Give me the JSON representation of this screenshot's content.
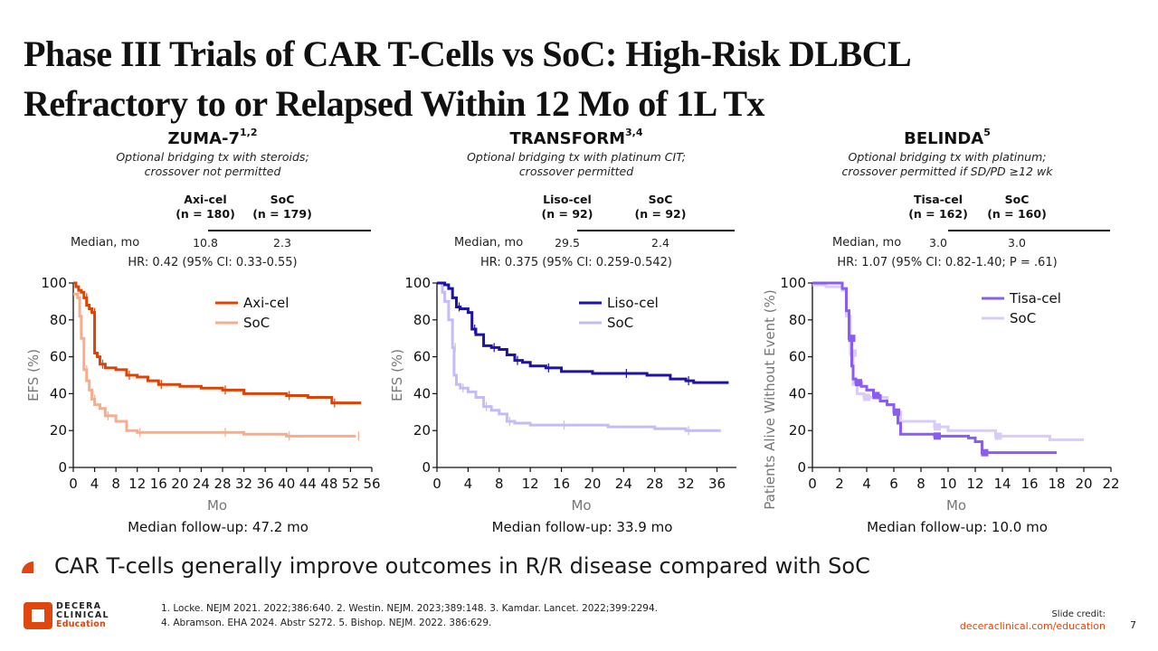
{
  "slide": {
    "title_line1": "Phase III Trials of CAR T-Cells vs SoC: High-Risk DLBCL",
    "title_line2": "Refractory to or Relapsed Within 12 Mo of 1L Tx",
    "bullet": "CAR T-cells generally improve outcomes in R/R disease compared with SoC",
    "references_line1": "1. Locke. NEJM 2021. 2022;386:640. 2. Westin. NEJM. 2023;389:148. 3. Kamdar. Lancet. 2022;399:2294.",
    "references_line2": "4. Abramson. EHA 2024. Abstr S272. 5. Bishop. NEJM. 2022. 386:629.",
    "credit_label": "Slide credit:",
    "credit_link": "deceraclinical.com/education",
    "page_number": "7",
    "logo": {
      "line1": "DECERA",
      "line2": "CLINICAL",
      "line3": "Education",
      "icon": "decera-logo-icon"
    },
    "brand_color": "#e0470f"
  },
  "panels": [
    {
      "trial": "ZUMA-7",
      "refs": "1,2",
      "desc_line1": "Optional bridging tx with steroids;",
      "desc_line2": "crossover not permitted",
      "arm1_name": "Axi-cel",
      "arm1_n": "(n = 180)",
      "arm2_name": "SoC",
      "arm2_n": "(n = 179)",
      "median_label": "Median, mo",
      "arm1_median": "10.8",
      "arm2_median": "2.3",
      "hr_text": "HR: 0.42 (95% CI: 0.33-0.55)",
      "followup": "Median follow-up: 47.2 mo"
    },
    {
      "trial": "TRANSFORM",
      "refs": "3,4",
      "desc_line1": "Optional bridging tx with platinum CIT;",
      "desc_line2": "crossover permitted",
      "arm1_name": "Liso-cel",
      "arm1_n": "(n = 92)",
      "arm2_name": "SoC",
      "arm2_n": "(n = 92)",
      "median_label": "Median, mo",
      "arm1_median": "29.5",
      "arm2_median": "2.4",
      "hr_text": "HR: 0.375 (95% CI: 0.259-0.542)",
      "followup": "Median follow-up: 33.9 mo"
    },
    {
      "trial": "BELINDA",
      "refs": "5",
      "desc_line1": "Optional bridging tx with platinum;",
      "desc_line2": "crossover permitted if SD/PD ≥12 wk",
      "arm1_name": "Tisa-cel",
      "arm1_n": "(n = 162)",
      "arm2_name": "SoC",
      "arm2_n": "(n = 160)",
      "median_label": "Median, mo",
      "arm1_median": "3.0",
      "arm2_median": "3.0",
      "hr_text": "HR: 1.07 (95% CI: 0.82-1.40; P = .61)",
      "followup": "Median follow-up: 10.0 mo"
    }
  ],
  "chart_data": [
    {
      "type": "line",
      "subtype": "kaplan-meier-step",
      "title": "ZUMA-7",
      "xlabel": "Mo",
      "ylabel": "EFS (%)",
      "xlim": [
        0,
        56
      ],
      "ylim": [
        0,
        100
      ],
      "xticks": [
        0,
        4,
        8,
        12,
        16,
        20,
        24,
        28,
        32,
        36,
        40,
        44,
        48,
        52,
        56
      ],
      "yticks": [
        0,
        20,
        40,
        60,
        80,
        100
      ],
      "legend_position": "top-right",
      "series": [
        {
          "name": "Axi-cel",
          "color": "#dc4405",
          "x": [
            0,
            0.5,
            1,
            1.5,
            2,
            2.5,
            3,
            3.5,
            4,
            4.5,
            5,
            6,
            8,
            10,
            12,
            14,
            16,
            20,
            24,
            28,
            32,
            36,
            40,
            44,
            48,
            48.5,
            54
          ],
          "y": [
            100,
            98,
            96,
            95,
            92,
            88,
            86,
            84,
            62,
            60,
            56,
            54,
            53,
            50,
            49,
            47,
            45,
            44,
            43,
            42,
            40,
            40,
            39,
            38,
            38,
            35,
            35
          ]
        },
        {
          "name": "SoC",
          "color": "#f7ad8c",
          "x": [
            0,
            0.8,
            1.2,
            1.5,
            2,
            2.5,
            3,
            3.5,
            4,
            5,
            6,
            8,
            10,
            12,
            14,
            20,
            28,
            32,
            36,
            40,
            44,
            48,
            53
          ],
          "y": [
            94,
            92,
            82,
            70,
            53,
            47,
            42,
            37,
            34,
            32,
            28,
            25,
            20,
            19,
            19,
            19,
            19,
            18,
            18,
            17,
            17,
            17,
            17
          ]
        }
      ]
    },
    {
      "type": "line",
      "subtype": "kaplan-meier-step",
      "title": "TRANSFORM",
      "xlabel": "Mo",
      "ylabel": "EFS (%)",
      "xlim": [
        0,
        38.5
      ],
      "ylim": [
        0,
        100
      ],
      "xticks": [
        0,
        4,
        8,
        12,
        16,
        20,
        24,
        28,
        32,
        36
      ],
      "yticks": [
        0,
        20,
        40,
        60,
        80,
        100
      ],
      "legend_position": "top-right",
      "series": [
        {
          "name": "Liso-cel",
          "color": "#1e12a6",
          "x": [
            0,
            1,
            1.5,
            2,
            2.5,
            3,
            4,
            4.5,
            5,
            6,
            7,
            8,
            9,
            10,
            11,
            12,
            14,
            16,
            20,
            24,
            27,
            30,
            32,
            33,
            37.5
          ],
          "y": [
            100,
            99,
            97,
            92,
            87,
            86,
            84,
            75,
            72,
            66,
            65,
            64,
            61,
            58,
            57,
            55,
            54,
            52,
            51,
            51,
            50,
            48,
            47,
            46,
            46
          ]
        },
        {
          "name": "SoC",
          "color": "#c4bdf5",
          "x": [
            0,
            0.7,
            1,
            1.5,
            2,
            2.2,
            2.5,
            3,
            4,
            5,
            6,
            7,
            8,
            9,
            10,
            12,
            16,
            22,
            28,
            32,
            36.5
          ],
          "y": [
            100,
            95,
            90,
            80,
            65,
            50,
            45,
            43,
            41,
            38,
            33,
            31,
            29,
            25,
            24,
            23,
            23,
            22,
            21,
            20,
            20
          ]
        }
      ]
    },
    {
      "type": "line",
      "subtype": "kaplan-meier-step",
      "title": "BELINDA",
      "xlabel": "Mo",
      "ylabel": "Patients Alive Without Event (%)",
      "xlim": [
        0,
        22
      ],
      "ylim": [
        0,
        100
      ],
      "xticks": [
        0,
        2,
        4,
        6,
        8,
        10,
        12,
        14,
        16,
        18,
        20,
        22
      ],
      "yticks": [
        0,
        20,
        40,
        60,
        80,
        100
      ],
      "legend_position": "top-right",
      "series": [
        {
          "name": "Tisa-cel",
          "color": "#8a5cf0",
          "x": [
            0,
            1.8,
            2.2,
            2.5,
            2.7,
            2.9,
            3.0,
            3.2,
            3.6,
            4,
            4.5,
            5,
            5.5,
            6,
            6.3,
            6.5,
            9,
            11.5,
            12,
            12.5,
            18
          ],
          "y": [
            100,
            100,
            97,
            85,
            70,
            55,
            48,
            46,
            44,
            42,
            39,
            36,
            34,
            30,
            24,
            18,
            17,
            16,
            14,
            8,
            8
          ]
        },
        {
          "name": "SoC",
          "color": "#d9ccfa",
          "x": [
            0,
            1,
            2.2,
            2.5,
            2.8,
            3.0,
            3.3,
            3.8,
            4.5,
            5.5,
            6,
            6.5,
            8,
            9,
            10,
            12,
            13.5,
            17.5,
            20
          ],
          "y": [
            99,
            98,
            96,
            82,
            62,
            45,
            40,
            38,
            38,
            34,
            30,
            25,
            25,
            22,
            20,
            20,
            17,
            15,
            15
          ]
        }
      ]
    }
  ]
}
